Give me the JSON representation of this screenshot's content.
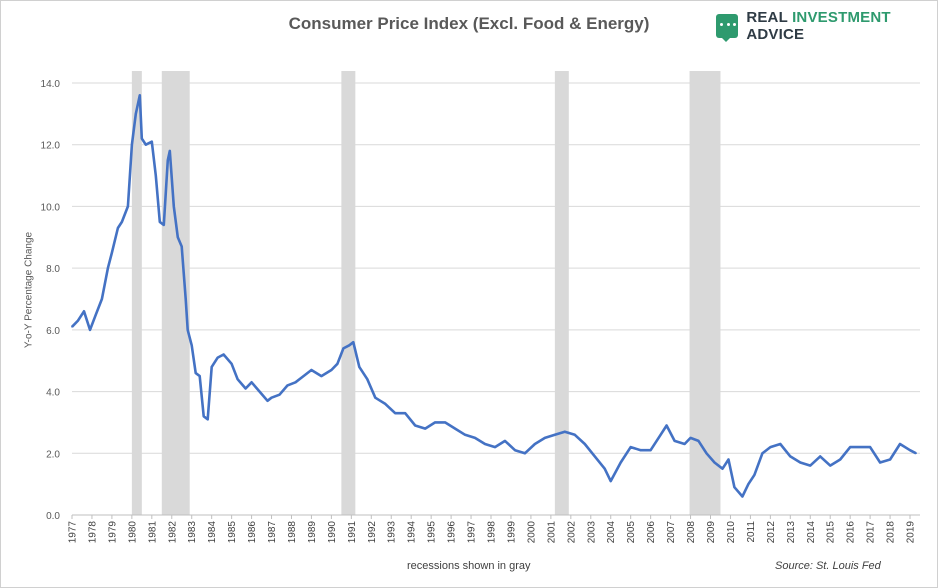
{
  "chart_data": {
    "type": "line",
    "title": "Consumer Price Index (Excl. Food & Energy)",
    "ylabel": "Y-o-Y Percentage Change",
    "xlabel": "",
    "ylim": [
      0,
      14
    ],
    "xlim": [
      1977.0,
      2019.5
    ],
    "yticks": [
      "0.0",
      "2.0",
      "4.0",
      "6.0",
      "8.0",
      "10.0",
      "12.0",
      "14.0"
    ],
    "xticks": [
      "1977",
      "1978",
      "1979",
      "1980",
      "1981",
      "1982",
      "1983",
      "1984",
      "1985",
      "1986",
      "1987",
      "1988",
      "1989",
      "1990",
      "1991",
      "1992",
      "1993",
      "1994",
      "1995",
      "1996",
      "1997",
      "1998",
      "1999",
      "2000",
      "2001",
      "2002",
      "2003",
      "2004",
      "2005",
      "2006",
      "2007",
      "2008",
      "2009",
      "2010",
      "2011",
      "2012",
      "2013",
      "2014",
      "2015",
      "2016",
      "2017",
      "2018",
      "2019"
    ],
    "grid": "horizontal",
    "line_color": "#4472c4",
    "recession_color": "#d9d9d9",
    "recessions": [
      [
        1980.0,
        1980.5
      ],
      [
        1981.5,
        1982.9
      ],
      [
        1990.5,
        1991.2
      ],
      [
        2001.2,
        2001.9
      ],
      [
        2007.95,
        2009.5
      ]
    ],
    "series": [
      {
        "x": [
          1977.0,
          1977.3,
          1977.6,
          1977.9,
          1978.2,
          1978.5,
          1978.8,
          1979.0,
          1979.3,
          1979.5,
          1979.8,
          1980.0,
          1980.2,
          1980.4,
          1980.5,
          1980.7,
          1981.0,
          1981.2,
          1981.4,
          1981.6,
          1981.8,
          1981.9,
          1982.1,
          1982.3,
          1982.5,
          1982.7,
          1982.8,
          1983.0,
          1983.2,
          1983.4,
          1983.6,
          1983.8,
          1984.0,
          1984.3,
          1984.6,
          1985.0,
          1985.3,
          1985.7,
          1986.0,
          1986.4,
          1986.8,
          1987.0,
          1987.4,
          1987.8,
          1988.2,
          1988.6,
          1989.0,
          1989.5,
          1990.0,
          1990.3,
          1990.6,
          1990.9,
          1991.1,
          1991.4,
          1991.8,
          1992.2,
          1992.7,
          1993.2,
          1993.7,
          1994.2,
          1994.7,
          1995.2,
          1995.7,
          1996.2,
          1996.7,
          1997.2,
          1997.7,
          1998.2,
          1998.7,
          1999.2,
          1999.7,
          2000.2,
          2000.7,
          2001.2,
          2001.7,
          2002.2,
          2002.7,
          2003.2,
          2003.7,
          2004.0,
          2004.5,
          2005.0,
          2005.5,
          2006.0,
          2006.5,
          2006.8,
          2007.2,
          2007.7,
          2008.0,
          2008.4,
          2008.8,
          2009.2,
          2009.6,
          2009.9,
          2010.2,
          2010.6,
          2010.9,
          2011.2,
          2011.6,
          2012.0,
          2012.5,
          2013.0,
          2013.5,
          2014.0,
          2014.5,
          2015.0,
          2015.5,
          2016.0,
          2016.5,
          2017.0,
          2017.5,
          2018.0,
          2018.5,
          2019.0,
          2019.3
        ],
        "y": [
          6.1,
          6.3,
          6.6,
          6.0,
          6.5,
          7.0,
          8.0,
          8.5,
          9.3,
          9.5,
          10.0,
          12.0,
          13.0,
          13.6,
          12.2,
          12.0,
          12.1,
          11.0,
          9.5,
          9.4,
          11.5,
          11.8,
          10.0,
          9.0,
          8.7,
          7.0,
          6.0,
          5.5,
          4.6,
          4.5,
          3.2,
          3.1,
          4.8,
          5.1,
          5.2,
          4.9,
          4.4,
          4.1,
          4.3,
          4.0,
          3.7,
          3.8,
          3.9,
          4.2,
          4.3,
          4.5,
          4.7,
          4.5,
          4.7,
          4.9,
          5.4,
          5.5,
          5.6,
          4.8,
          4.4,
          3.8,
          3.6,
          3.3,
          3.3,
          2.9,
          2.8,
          3.0,
          3.0,
          2.8,
          2.6,
          2.5,
          2.3,
          2.2,
          2.4,
          2.1,
          2.0,
          2.3,
          2.5,
          2.6,
          2.7,
          2.6,
          2.3,
          1.9,
          1.5,
          1.1,
          1.7,
          2.2,
          2.1,
          2.1,
          2.6,
          2.9,
          2.4,
          2.3,
          2.5,
          2.4,
          2.0,
          1.7,
          1.5,
          1.8,
          0.9,
          0.6,
          1.0,
          1.3,
          2.0,
          2.2,
          2.3,
          1.9,
          1.7,
          1.6,
          1.9,
          1.6,
          1.8,
          2.2,
          2.2,
          2.2,
          1.7,
          1.8,
          2.3,
          2.1,
          2.0
        ]
      }
    ]
  },
  "logo": {
    "word1": "REAL",
    "word2": "INVESTMENT",
    "word3": "ADVICE"
  },
  "footer": {
    "note": "recessions shown in gray",
    "source": "Source: St. Louis Fed"
  }
}
